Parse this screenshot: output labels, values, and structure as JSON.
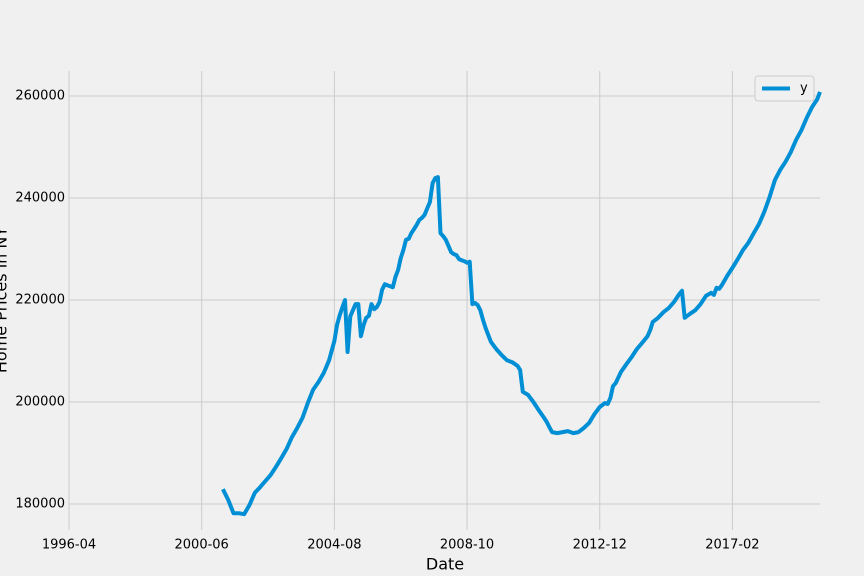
{
  "chart_data": {
    "type": "line",
    "xlabel": "Date",
    "ylabel": "Home Prices in NY",
    "x": [
      "2001-02",
      "2001-04",
      "2001-06",
      "2001-08",
      "2001-10",
      "2001-12",
      "2002-02",
      "2002-04",
      "2002-06",
      "2002-08",
      "2002-10",
      "2002-12",
      "2003-02",
      "2003-04",
      "2003-06",
      "2003-08",
      "2003-10",
      "2003-12",
      "2004-02",
      "2004-04",
      "2004-06",
      "2004-08",
      "2004-09",
      "2004-10",
      "2004-11",
      "2004-12",
      "2005-01",
      "2005-02",
      "2005-03",
      "2005-04",
      "2005-05",
      "2005-06",
      "2005-07",
      "2005-08",
      "2005-09",
      "2005-10",
      "2005-11",
      "2005-12",
      "2006-01",
      "2006-02",
      "2006-03",
      "2006-04",
      "2006-06",
      "2006-07",
      "2006-08",
      "2006-09",
      "2006-10",
      "2006-11",
      "2006-12",
      "2007-01",
      "2007-02",
      "2007-03",
      "2007-04",
      "2007-05",
      "2007-06",
      "2007-07",
      "2007-08",
      "2007-09",
      "2007-10",
      "2007-11",
      "2007-12",
      "2008-01",
      "2008-02",
      "2008-03",
      "2008-04",
      "2008-05",
      "2008-06",
      "2008-07",
      "2008-08",
      "2008-09",
      "2008-10",
      "2008-11",
      "2008-12",
      "2009-01",
      "2009-02",
      "2009-03",
      "2009-04",
      "2009-05",
      "2009-07",
      "2009-09",
      "2009-11",
      "2010-01",
      "2010-03",
      "2010-05",
      "2010-06",
      "2010-07",
      "2010-09",
      "2010-11",
      "2011-01",
      "2011-03",
      "2011-04",
      "2011-05",
      "2011-06",
      "2011-08",
      "2011-10",
      "2011-12",
      "2012-02",
      "2012-04",
      "2012-06",
      "2012-08",
      "2012-10",
      "2012-12",
      "2013-02",
      "2013-03",
      "2013-04",
      "2013-05",
      "2013-06",
      "2013-08",
      "2013-10",
      "2013-12",
      "2014-02",
      "2014-04",
      "2014-06",
      "2014-07",
      "2014-08",
      "2014-10",
      "2014-12",
      "2015-02",
      "2015-04",
      "2015-06",
      "2015-07",
      "2015-08",
      "2015-10",
      "2015-12",
      "2016-02",
      "2016-04",
      "2016-06",
      "2016-07",
      "2016-08",
      "2016-09",
      "2016-10",
      "2016-12",
      "2017-02",
      "2017-04",
      "2017-06",
      "2017-08",
      "2017-10",
      "2017-12",
      "2018-02",
      "2018-04",
      "2018-06",
      "2018-08",
      "2018-10",
      "2018-12",
      "2019-02",
      "2019-04",
      "2019-06",
      "2019-08",
      "2019-10",
      "2019-11"
    ],
    "series": [
      {
        "name": "y",
        "color": "#008fd5",
        "values": [
          182900,
          180800,
          178200,
          178200,
          178000,
          179800,
          182200,
          183300,
          184500,
          185700,
          187300,
          189000,
          190800,
          193100,
          194900,
          196900,
          199800,
          202400,
          203900,
          205700,
          208200,
          212000,
          215100,
          217000,
          218500,
          220000,
          209800,
          216800,
          218000,
          219200,
          219200,
          212900,
          215100,
          216500,
          216900,
          219200,
          218200,
          218600,
          219600,
          222000,
          223100,
          222900,
          222500,
          224500,
          225900,
          228200,
          229800,
          231800,
          232000,
          233100,
          233900,
          234700,
          235700,
          236100,
          236700,
          238000,
          239200,
          242900,
          243900,
          244100,
          233100,
          232500,
          231800,
          230600,
          229400,
          229000,
          228800,
          228000,
          227800,
          227600,
          227300,
          227500,
          219200,
          219400,
          219000,
          218000,
          216100,
          214500,
          211800,
          210400,
          209200,
          208200,
          207800,
          207100,
          206300,
          202000,
          201400,
          200000,
          198400,
          196900,
          196100,
          195100,
          194100,
          193900,
          194100,
          194300,
          193900,
          194100,
          194900,
          195900,
          197600,
          199000,
          199800,
          199600,
          200800,
          203100,
          203700,
          205900,
          207400,
          208800,
          210400,
          211600,
          212900,
          214100,
          215700,
          216500,
          217600,
          218400,
          219600,
          221200,
          221800,
          216500,
          217300,
          218000,
          219200,
          220800,
          221400,
          221000,
          222400,
          222200,
          222900,
          224700,
          226300,
          228000,
          229800,
          231200,
          233100,
          234900,
          237300,
          240200,
          243500,
          245500,
          247100,
          249000,
          251400,
          253300,
          255700,
          257800,
          259400,
          260800
        ]
      }
    ],
    "xlim": [
      "1996-04",
      "2019-11"
    ],
    "xticks": [
      "1996-04",
      "2000-06",
      "2004-08",
      "2008-10",
      "2012-12",
      "2017-02"
    ],
    "ylim": [
      174900,
      264900
    ],
    "yticks": [
      180000,
      200000,
      220000,
      240000,
      260000
    ],
    "grid": true,
    "legend": "upper right"
  }
}
